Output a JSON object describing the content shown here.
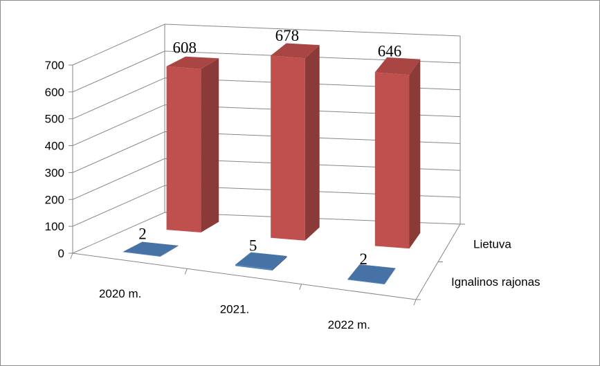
{
  "chart_data": {
    "type": "bar",
    "style": "3d-column",
    "categories": [
      "2020 m.",
      "2021.",
      "2022 m."
    ],
    "series": [
      {
        "name": "Ignalinos rajonas",
        "values": [
          2,
          5,
          2
        ],
        "color": "#4f81bd"
      },
      {
        "name": "Lietuva",
        "values": [
          608,
          678,
          646
        ],
        "color": "#c0504d"
      }
    ],
    "yticks": [
      "0",
      "100",
      "200",
      "300",
      "400",
      "500",
      "600",
      "700"
    ],
    "ylim": [
      0,
      700
    ],
    "grid": true,
    "legend": "none",
    "title": "",
    "xlabel": "",
    "ylabel": ""
  }
}
